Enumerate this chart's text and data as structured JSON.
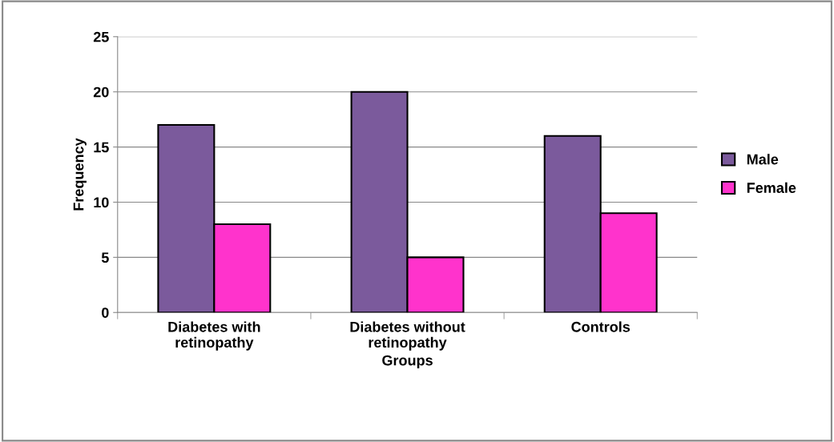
{
  "chart_data": {
    "type": "bar",
    "xlabel": "Groups",
    "ylabel": "Frequency",
    "categories": [
      "Diabetes with\nretinopathy",
      "Diabetes without\nretinopathy",
      "Controls"
    ],
    "series": [
      {
        "name": "Male",
        "color": "#7b5a9c",
        "values": [
          17,
          20,
          16
        ]
      },
      {
        "name": "Female",
        "color": "#ff33cc",
        "values": [
          8,
          5,
          9
        ]
      }
    ],
    "ylim": [
      0,
      25
    ],
    "yticks": [
      0,
      5,
      10,
      15,
      20,
      25
    ],
    "grid": "y",
    "legend": "right"
  }
}
